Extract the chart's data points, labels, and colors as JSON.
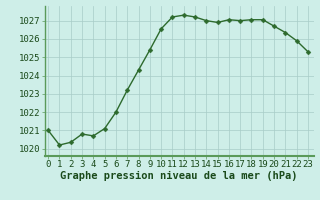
{
  "x": [
    0,
    1,
    2,
    3,
    4,
    5,
    6,
    7,
    8,
    9,
    10,
    11,
    12,
    13,
    14,
    15,
    16,
    17,
    18,
    19,
    20,
    21,
    22,
    23
  ],
  "y": [
    1021.0,
    1020.2,
    1020.35,
    1020.8,
    1020.7,
    1021.1,
    1022.0,
    1023.2,
    1024.3,
    1025.4,
    1026.55,
    1027.2,
    1027.3,
    1027.2,
    1027.0,
    1026.9,
    1027.05,
    1027.0,
    1027.05,
    1027.05,
    1026.7,
    1026.35,
    1025.9,
    1025.3
  ],
  "line_color": "#2d6a2d",
  "marker_color": "#2d6a2d",
  "bg_color": "#ceeee8",
  "grid_color": "#a8ccc8",
  "axis_color": "#3a7a3a",
  "xlabel": "Graphe pression niveau de la mer (hPa)",
  "xlabel_color": "#1a4a1a",
  "yticks": [
    1020,
    1021,
    1022,
    1023,
    1024,
    1025,
    1026,
    1027
  ],
  "xticks": [
    0,
    1,
    2,
    3,
    4,
    5,
    6,
    7,
    8,
    9,
    10,
    11,
    12,
    13,
    14,
    15,
    16,
    17,
    18,
    19,
    20,
    21,
    22,
    23
  ],
  "ylim": [
    1019.6,
    1027.8
  ],
  "xlim": [
    -0.3,
    23.5
  ],
  "tick_fontsize": 6.5,
  "label_fontsize": 7.5,
  "line_width": 1.0,
  "marker_size": 2.5,
  "spine_color": "#5a9a5a"
}
